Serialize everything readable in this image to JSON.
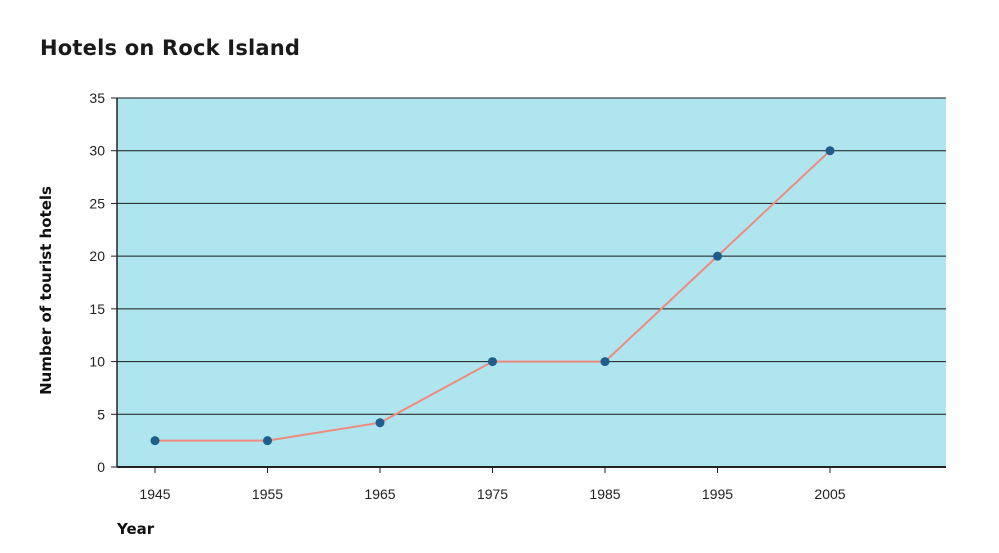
{
  "chart_data": {
    "type": "line",
    "title": "Hotels on Rock Island",
    "xlabel": "Year",
    "ylabel": "Number of tourist hotels",
    "x": [
      1945,
      1955,
      1965,
      1975,
      1985,
      1995,
      2005
    ],
    "y": [
      2.5,
      2.5,
      4.2,
      10,
      10,
      20,
      30
    ],
    "yticks": [
      0,
      5,
      10,
      15,
      20,
      25,
      30,
      35
    ],
    "ylim": [
      0,
      35
    ],
    "xlim": [
      1945,
      2005
    ],
    "grid": true,
    "colors": {
      "plot_bg": "#aee5ef",
      "line": "#f08a7e",
      "marker": "#1f5d8c",
      "grid": "#1a1a1a"
    }
  }
}
